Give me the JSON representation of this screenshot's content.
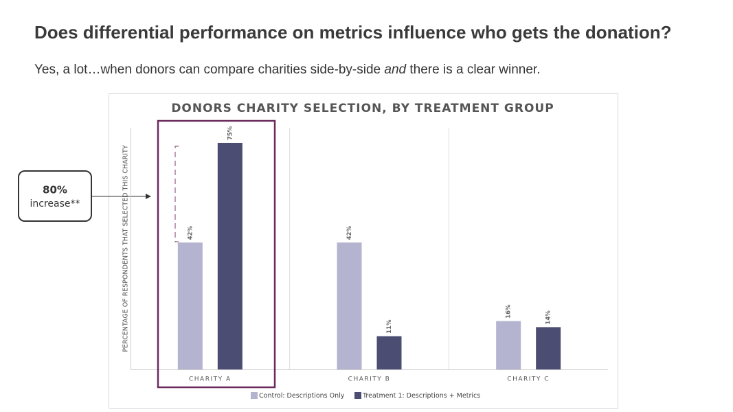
{
  "slide": {
    "title": "Does differential performance on metrics influence who gets the donation?",
    "subtitle": [
      "Yes, a lot…when donors can compare charities side-by-side ",
      "and",
      " there is a clear winner."
    ],
    "callout": [
      "80%",
      "increase**"
    ]
  },
  "chart_data": {
    "type": "bar",
    "title": "DONORS CHARITY SELECTION, BY TREATMENT GROUP",
    "y_label": "PERCENTAGE OF RESPONDENTS THAT SELECTED THIS CHARITY",
    "categories": [
      "CHARITY A",
      "CHARITY B",
      "CHARITY C"
    ],
    "series": [
      {
        "name": "Control: Descriptions Only",
        "color": "#b4b4d0",
        "values": [
          42,
          42,
          16
        ],
        "value_labels": [
          "42%",
          "42%",
          "16%"
        ]
      },
      {
        "name": "Treatment 1: Descriptions + Metrics",
        "color": "#4b4d72",
        "values": [
          75,
          11,
          14
        ],
        "value_labels": [
          "75%",
          "11%",
          "14%"
        ]
      }
    ],
    "ylim": [
      0,
      80
    ]
  }
}
